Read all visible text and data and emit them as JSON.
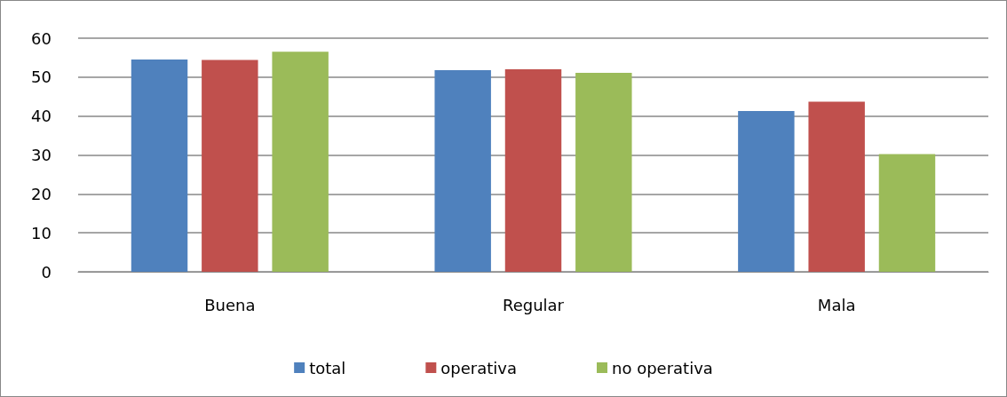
{
  "chart_data": {
    "type": "bar",
    "categories": [
      "Buena",
      "Regular",
      "Mala"
    ],
    "series": [
      {
        "name": "total",
        "color": "#4f81bd",
        "values": [
          54.5,
          51.8,
          41.3
        ]
      },
      {
        "name": "operativa",
        "color": "#c0504d",
        "values": [
          54.4,
          52.0,
          43.7
        ]
      },
      {
        "name": "no operativa",
        "color": "#9bbb59",
        "values": [
          56.5,
          51.1,
          30.2
        ]
      }
    ],
    "ylim": [
      0,
      60
    ],
    "yticks": [
      0,
      10,
      20,
      30,
      40,
      50,
      60
    ],
    "grid": "y",
    "legend": "bottom"
  }
}
